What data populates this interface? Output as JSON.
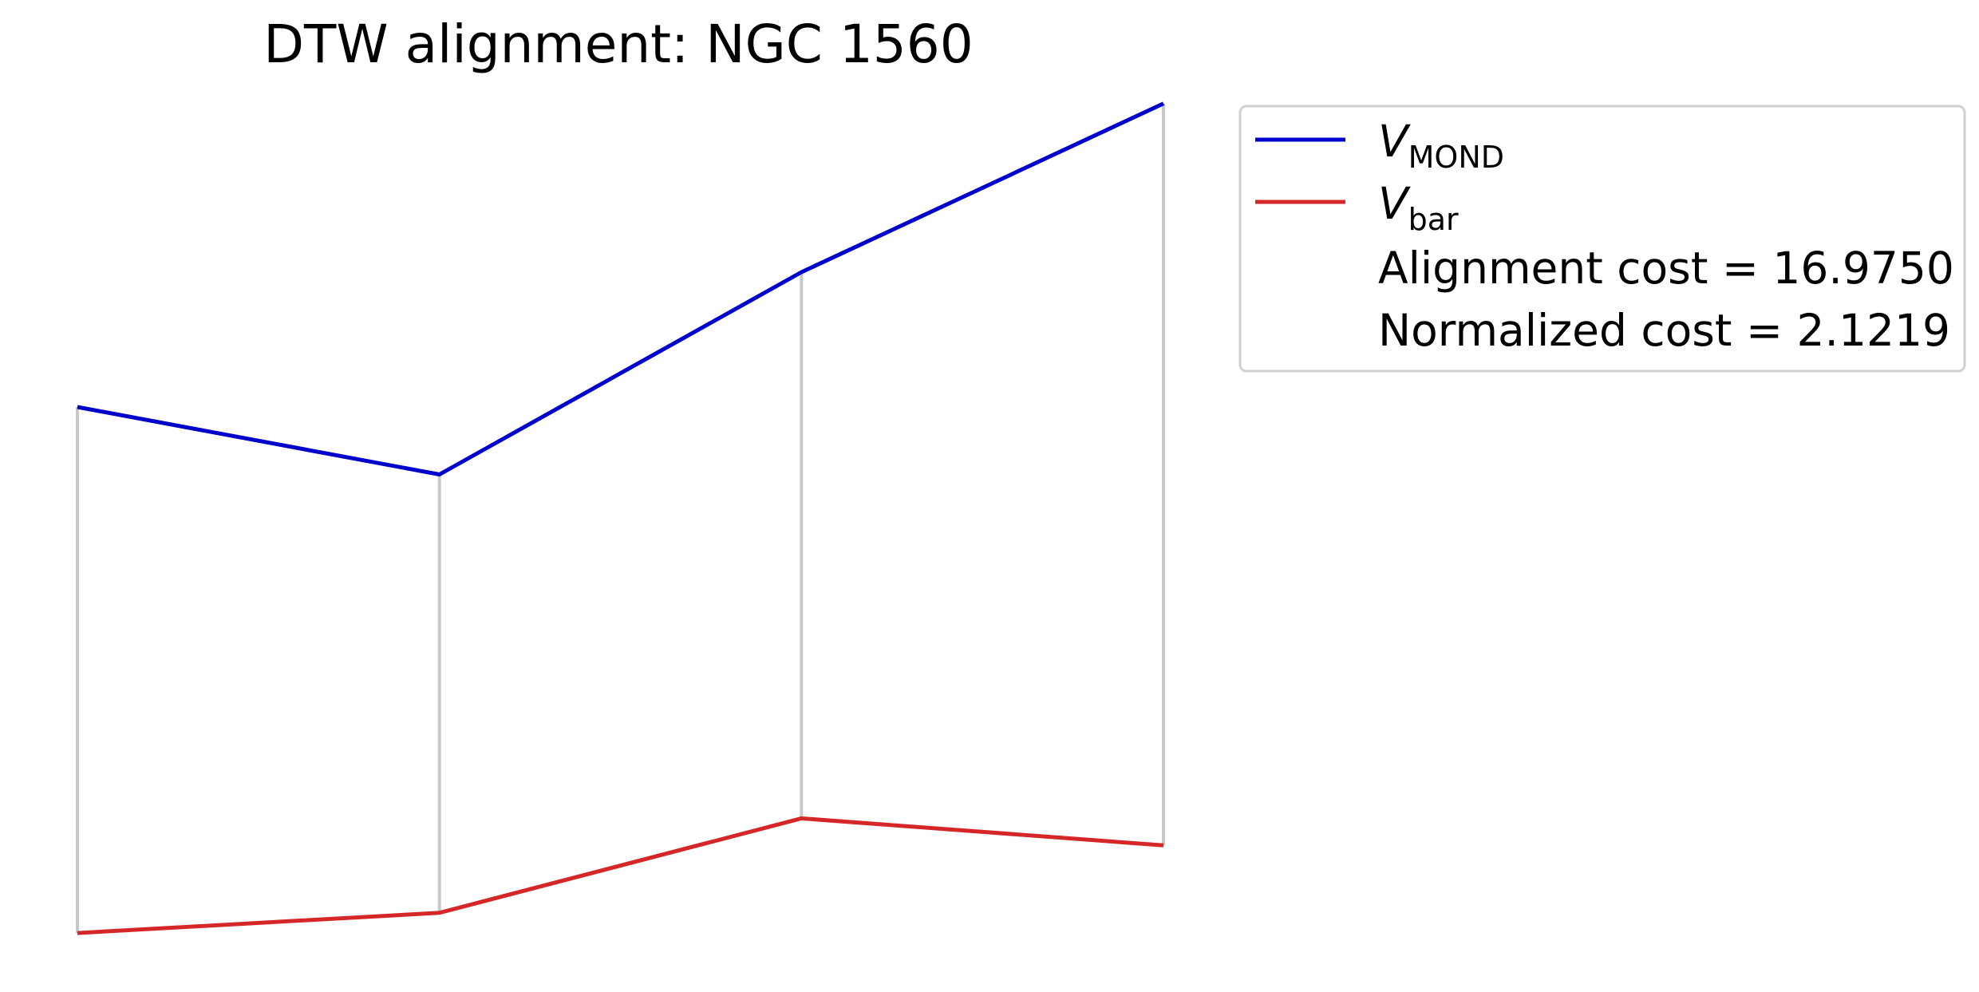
{
  "chart_data": {
    "type": "line",
    "title": "DTW alignment: NGC 1560",
    "xlabel": "",
    "ylabel": "",
    "axes_visible": false,
    "grid": false,
    "legend_position": "upper right, outside plot",
    "x": [
      0,
      1,
      2,
      3
    ],
    "series": [
      {
        "name": "V_MOND",
        "label_symbol": "V",
        "label_subscript": "MOND",
        "color": "#0000cc",
        "values": [
          0.5,
          0.0,
          1.5,
          2.75
        ]
      },
      {
        "name": "V_bar",
        "label_symbol": "V",
        "label_subscript": "bar",
        "color": "#d62728",
        "values": [
          -3.4,
          -3.25,
          -2.55,
          -2.75
        ]
      }
    ],
    "alignment": {
      "pairs": [
        [
          0,
          0
        ],
        [
          1,
          1
        ],
        [
          2,
          2
        ],
        [
          3,
          3
        ]
      ],
      "color": "#c8c8c8"
    },
    "annotations": [
      "Alignment cost = 16.9750",
      "Normalized cost = 2.1219"
    ]
  }
}
